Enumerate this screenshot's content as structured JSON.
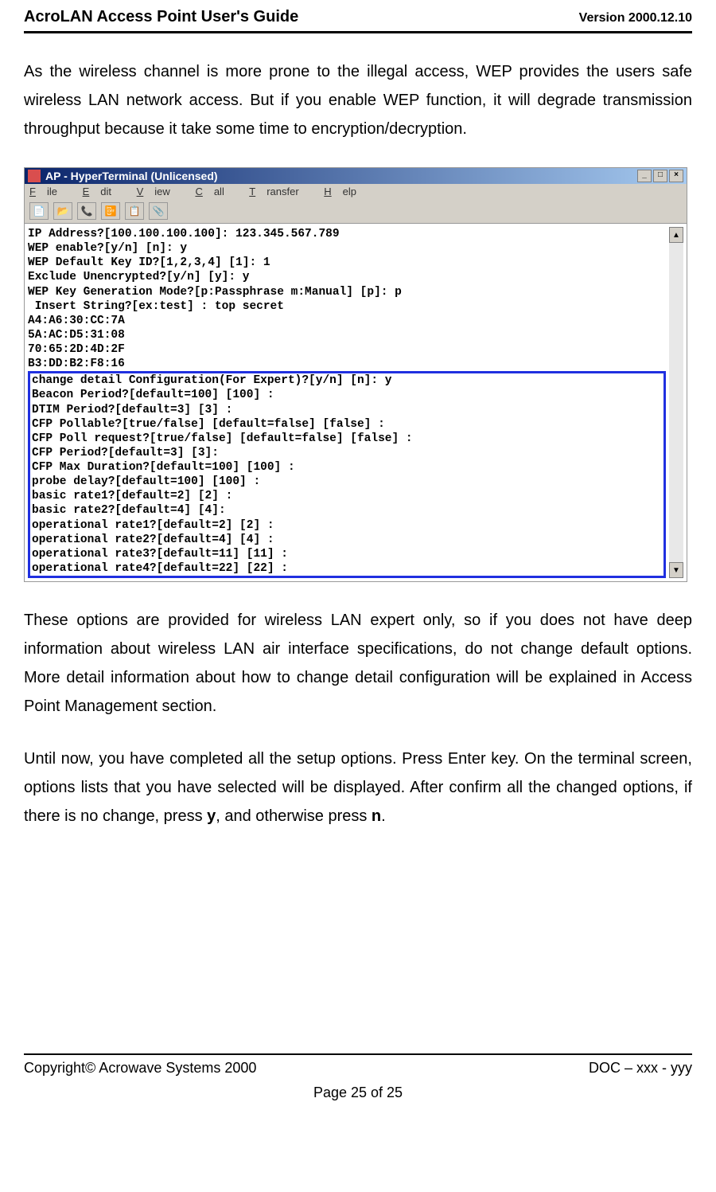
{
  "header": {
    "title": "AcroLAN Access Point User's Guide",
    "version": "Version 2000.12.10"
  },
  "paragraphs": {
    "p1": "As the wireless channel is more prone to the illegal access, WEP provides the users safe wireless LAN network access. But if you enable WEP function, it will degrade transmission throughput because it take some time to encryption/decryption.",
    "p2": "These options are provided for wireless LAN expert only, so if you does not have deep information about wireless LAN air interface specifications, do not change default options. More detail information about how to change detail configuration will be explained in Access Point Management section.",
    "p3a": "Until now, you have completed all the setup options. Press Enter key. On the terminal screen, options lists that you have selected will be displayed. After confirm all the changed options, if there is no change, press ",
    "p3b": "y",
    "p3c": ", and otherwise press ",
    "p3d": "n",
    "p3e": "."
  },
  "terminal": {
    "title": "AP - HyperTerminal (Unlicensed)",
    "menu": {
      "file": "File",
      "edit": "Edit",
      "view": "View",
      "call": "Call",
      "transfer": "Transfer",
      "help": "Help"
    },
    "lines_top": [
      "IP Address?[100.100.100.100]: 123.345.567.789",
      "WEP enable?[y/n] [n]: y",
      "WEP Default Key ID?[1,2,3,4] [1]: 1",
      "Exclude Unencrypted?[y/n] [y]: y",
      "WEP Key Generation Mode?[p:Passphrase m:Manual] [p]: p",
      " Insert String?[ex:test] : top secret",
      "A4:A6:30:CC:7A",
      "5A:AC:D5:31:08",
      "70:65:2D:4D:2F",
      "B3:DD:B2:F8:16"
    ],
    "lines_box": [
      "change detail Configuration(For Expert)?[y/n] [n]: y",
      "Beacon Period?[default=100] [100] :",
      "DTIM Period?[default=3] [3] :",
      "CFP Pollable?[true/false] [default=false] [false] :",
      "CFP Poll request?[true/false] [default=false] [false] :",
      "CFP Period?[default=3] [3]:",
      "CFP Max Duration?[default=100] [100] :",
      "probe delay?[default=100] [100] :",
      "basic rate1?[default=2] [2] :",
      "basic rate2?[default=4] [4]:",
      "operational rate1?[default=2] [2] :",
      "operational rate2?[default=4] [4] :",
      "operational rate3?[default=11] [11] :",
      "operational rate4?[default=22] [22] :"
    ],
    "win_buttons": {
      "min": "_",
      "max": "□",
      "close": "×"
    },
    "scroll": {
      "up": "▲",
      "down": "▼"
    },
    "toolbar_icons": [
      "📄",
      "📂",
      "📞",
      "📴",
      "📋",
      "📎"
    ]
  },
  "footer": {
    "left": "Copyright© Acrowave Systems 2000",
    "right": "DOC – xxx - yyy",
    "center": "Page 25 of 25"
  },
  "colors": {
    "highlight_border": "#2030e0",
    "titlebar_start": "#0a246a",
    "titlebar_end": "#a6caf0",
    "win_bg": "#d4d0c8"
  }
}
